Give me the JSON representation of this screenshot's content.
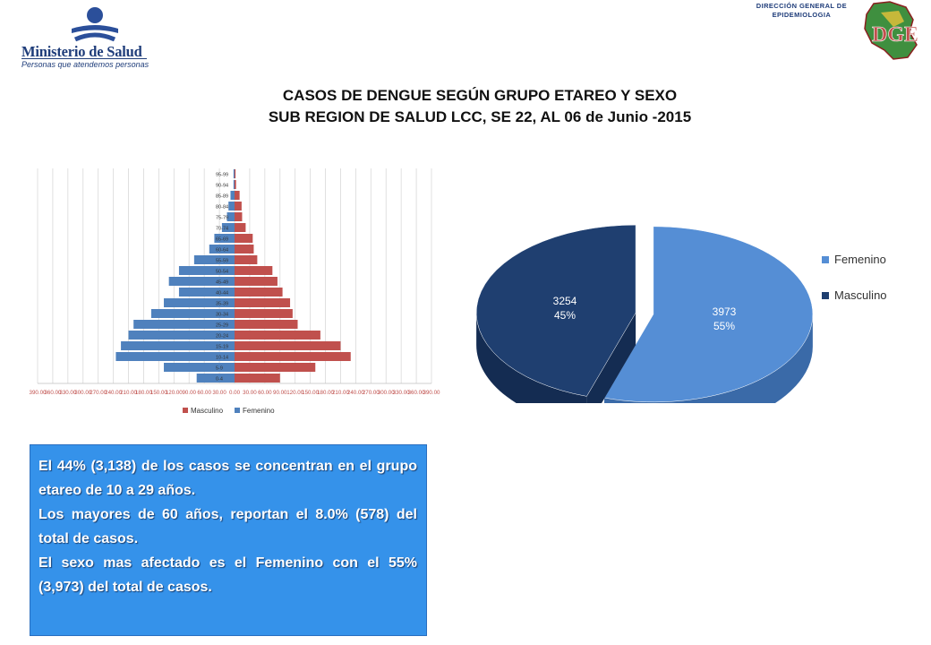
{
  "header": {
    "left_logo": {
      "name": "Ministerio de Salud",
      "tagline": "Personas que atendemos personas"
    },
    "right_logo": {
      "line1": "DIRECCIÓN GENERAL DE",
      "line2": "EPIDEMIOLOGIA",
      "acronym": "DGE"
    }
  },
  "title": {
    "line1": "CASOS DE DENGUE SEGÚN  GRUPO ETAREO Y SEXO",
    "line2": "SUB REGION DE SALUD LCC, SE 22, AL 06 de Junio -2015"
  },
  "summary": {
    "p1": "El 44% (3,138) de los casos se concentran en el grupo etareo de 10 a 29 años.",
    "p2": "Los mayores de 60 años, reportan el 8.0% (578) del total de casos.",
    "p3": "El sexo mas afectado es el Femenino con el 55% (3,973) del total de casos."
  },
  "colors": {
    "masculino": "#c0504d",
    "femenino": "#4f81bd",
    "pie_femenino": "#558ed5",
    "pie_masculino": "#1f3f70",
    "summary_bg": "#3592ea"
  },
  "chart_data": [
    {
      "type": "bar",
      "orientation": "horizontal-pyramid",
      "categories": [
        "0-4",
        "5-9",
        "10-14",
        "15-19",
        "20-24",
        "25-29",
        "30-34",
        "35-39",
        "40-44",
        "45-49",
        "50-54",
        "55-59",
        "60-64",
        "65-69",
        "70-74",
        "75-79",
        "80-84",
        "85-89",
        "90-94",
        "95-99"
      ],
      "series": [
        {
          "name": "Masculino",
          "values": [
            90,
            160,
            230,
            210,
            170,
            125,
            115,
            110,
            95,
            85,
            75,
            45,
            38,
            36,
            22,
            15,
            14,
            10,
            3,
            2
          ]
        },
        {
          "name": "Femenino",
          "values": [
            75,
            140,
            235,
            225,
            210,
            200,
            165,
            140,
            110,
            130,
            110,
            80,
            50,
            40,
            25,
            15,
            12,
            8,
            2,
            2
          ]
        }
      ],
      "x_ticks": [
        "390.00",
        "360.00",
        "330.00",
        "300.00",
        "270.00",
        "240.00",
        "210.00",
        "180.00",
        "150.00",
        "120.00",
        "90.00",
        "60.00",
        "30.00",
        "0.00",
        "30.00",
        "60.00",
        "90.00",
        "120.00",
        "150.00",
        "180.00",
        "210.00",
        "240.00",
        "270.00",
        "300.00",
        "330.00",
        "360.00",
        "390.00"
      ],
      "xlim": [
        -390,
        390
      ],
      "grid": true,
      "legend": "bottom"
    },
    {
      "type": "pie",
      "style": "3d-exploded",
      "slices": [
        {
          "name": "Femenino",
          "value": 3973,
          "value_label": "3973",
          "pct_label": "55%"
        },
        {
          "name": "Masculino",
          "value": 3254,
          "value_label": "3254",
          "pct_label": "45%"
        }
      ],
      "legend": "right"
    }
  ]
}
